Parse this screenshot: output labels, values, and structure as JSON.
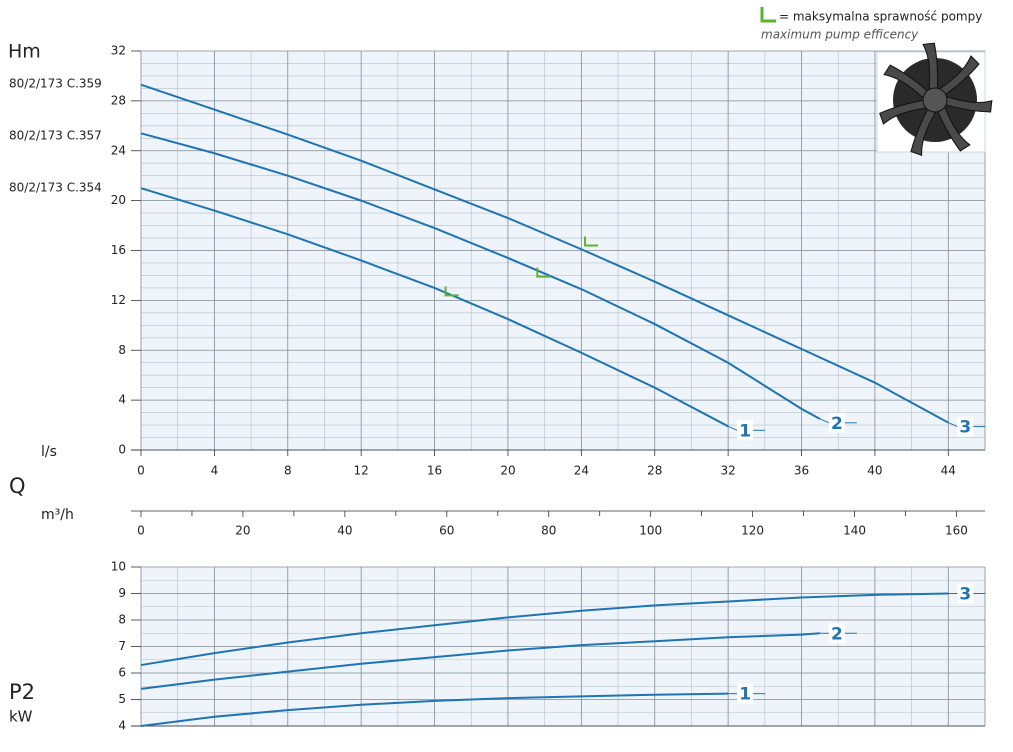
{
  "chart_data": [
    {
      "type": "line",
      "ylabel": "Hm",
      "xlabel": "l/s",
      "xtitle": "Q",
      "x2label": "m³/h",
      "xlim": [
        0,
        46
      ],
      "xticks": [
        0,
        4,
        8,
        12,
        16,
        20,
        24,
        28,
        32,
        36,
        40,
        44
      ],
      "ylim": [
        0,
        32
      ],
      "yticks": [
        0,
        4,
        8,
        12,
        16,
        20,
        24,
        28,
        32
      ],
      "x2lim": [
        0,
        165.6
      ],
      "x2ticks": [
        0,
        20,
        40,
        60,
        80,
        100,
        120,
        140,
        160
      ],
      "grid": true,
      "series": [
        {
          "name": "1",
          "model": "80/2/173 C.354",
          "color": "#1f74b2",
          "x": [
            0,
            4,
            8,
            12,
            16,
            20,
            24,
            28,
            32
          ],
          "values": [
            21.0,
            19.2,
            17.3,
            15.2,
            13.0,
            10.5,
            7.8,
            5.0,
            1.9
          ]
        },
        {
          "name": "2",
          "model": "80/2/173 C.357",
          "color": "#1f74b2",
          "x": [
            0,
            4,
            8,
            12,
            16,
            20,
            24,
            28,
            32,
            36,
            37
          ],
          "values": [
            25.4,
            23.8,
            22.0,
            20.0,
            17.8,
            15.4,
            12.9,
            10.1,
            7.0,
            3.3,
            2.5
          ]
        },
        {
          "name": "3",
          "model": "80/2/173 C.359",
          "color": "#1f74b2",
          "x": [
            0,
            4,
            8,
            12,
            16,
            20,
            24,
            28,
            32,
            36,
            40,
            44
          ],
          "values": [
            29.3,
            27.3,
            25.3,
            23.2,
            20.9,
            18.6,
            16.1,
            13.5,
            10.8,
            8.1,
            5.4,
            2.2
          ]
        }
      ],
      "bep": {
        "x": [
          16.6,
          21.6,
          24.2
        ],
        "y": [
          12.4,
          13.9,
          16.4
        ],
        "color": "#5cb531"
      },
      "legend": {
        "label": "= maksymalna sprawność pompy",
        "sublabel": "maximum pump efficency"
      }
    },
    {
      "type": "line",
      "ylabel": "P2",
      "yunit": "kW",
      "xlim": [
        0,
        46
      ],
      "xticks": [
        0,
        4,
        8,
        12,
        16,
        20,
        24,
        28,
        32,
        36,
        40,
        44
      ],
      "ylim": [
        4,
        10
      ],
      "yticks": [
        4,
        5,
        6,
        7,
        8,
        9,
        10
      ],
      "grid": true,
      "series": [
        {
          "name": "1",
          "color": "#1f74b2",
          "x": [
            0,
            4,
            8,
            12,
            16,
            20,
            24,
            28,
            32
          ],
          "values": [
            4.0,
            4.35,
            4.6,
            4.8,
            4.95,
            5.05,
            5.12,
            5.18,
            5.22
          ]
        },
        {
          "name": "2",
          "color": "#1f74b2",
          "x": [
            0,
            4,
            8,
            12,
            16,
            20,
            24,
            28,
            32,
            36,
            37
          ],
          "values": [
            5.4,
            5.75,
            6.05,
            6.35,
            6.6,
            6.85,
            7.05,
            7.2,
            7.35,
            7.45,
            7.5
          ]
        },
        {
          "name": "3",
          "color": "#1f74b2",
          "x": [
            0,
            4,
            8,
            12,
            16,
            20,
            24,
            28,
            32,
            36,
            40,
            44
          ],
          "values": [
            6.3,
            6.75,
            7.15,
            7.5,
            7.8,
            8.1,
            8.35,
            8.55,
            8.7,
            8.85,
            8.95,
            9.0
          ]
        }
      ]
    }
  ]
}
